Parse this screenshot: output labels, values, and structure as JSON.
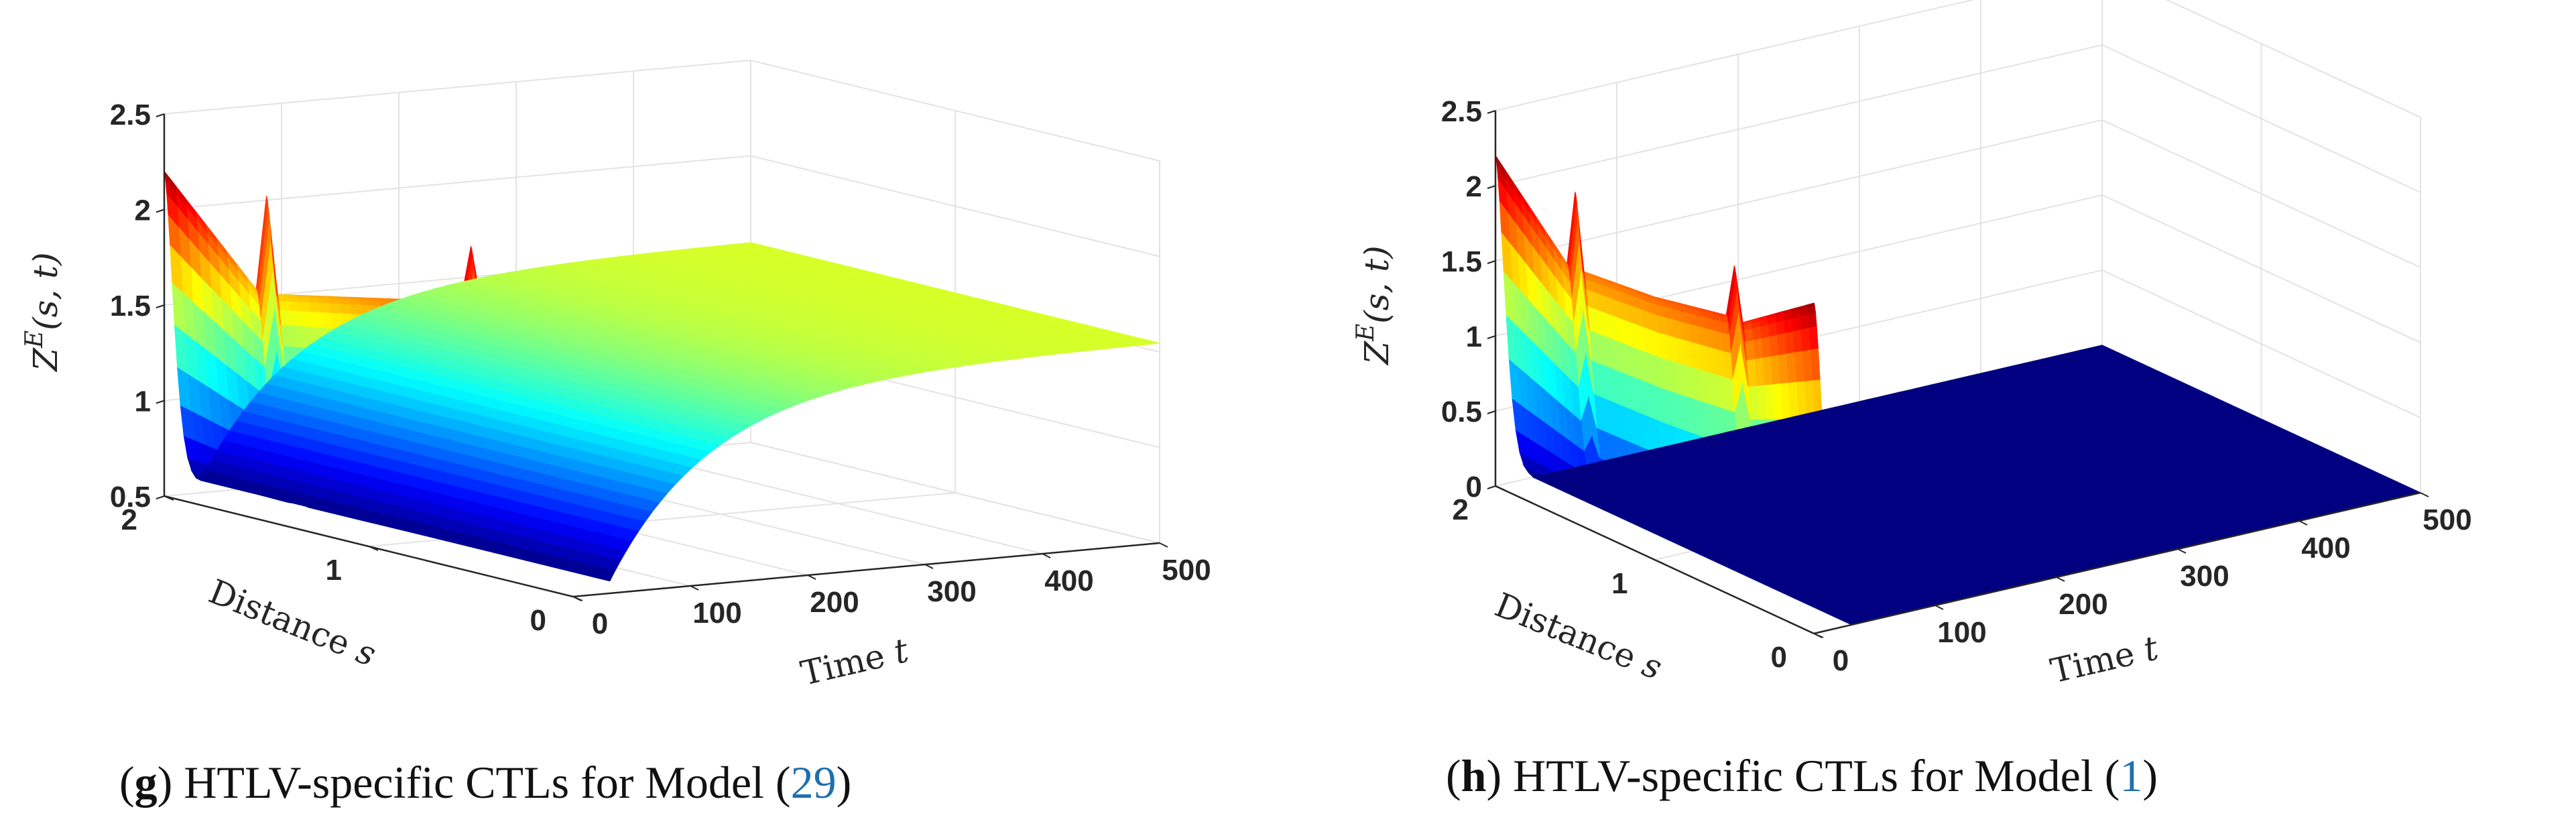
{
  "colors": {
    "grid": "#e3e3e3",
    "axis": "#262626",
    "link": "#1f6fb0"
  },
  "chart_data": [
    {
      "type": "surface",
      "panel_letter": "g",
      "caption_pre": "HTLV-specific CTLs for Model (",
      "caption_ref": "29",
      "caption_post": ")",
      "zlabel_main": "Z",
      "zlabel_sup": "E",
      "zlabel_args": "(s, t)",
      "xlabel_main": "Time ",
      "xlabel_var": "t",
      "ylabel_main": "Distance ",
      "ylabel_var": "s",
      "xlim": [
        0,
        500
      ],
      "ylim": [
        0,
        2
      ],
      "zlim": [
        0.5,
        2.5
      ],
      "xticks": [
        "0",
        "100",
        "200",
        "300",
        "400",
        "500"
      ],
      "yticks": [
        "0",
        "1",
        "2"
      ],
      "zticks": [
        "0.5",
        "1",
        "1.5",
        "2",
        "2.5"
      ],
      "colormap": "jet",
      "grid": true,
      "initial_profile": {
        "s": [
          0,
          0.45,
          0.5,
          0.55,
          1.0,
          1.45,
          1.5,
          1.55,
          2.0
        ],
        "Z": [
          2.2,
          1.9,
          2.2,
          1.9,
          1.8,
          1.7,
          2.2,
          1.7,
          2.2
        ]
      },
      "min_value": 0.55,
      "min_time": 30,
      "steady_state": 1.55
    },
    {
      "type": "surface",
      "panel_letter": "h",
      "caption_pre": "HTLV-specific CTLs for Model (",
      "caption_ref": "1",
      "caption_post": ")",
      "zlabel_main": "Z",
      "zlabel_sup": "E",
      "zlabel_args": "(s, t)",
      "xlabel_main": "Time ",
      "xlabel_var": "t",
      "ylabel_main": "Distance ",
      "ylabel_var": "s",
      "xlim": [
        0,
        500
      ],
      "ylim": [
        0,
        2
      ],
      "zlim": [
        0,
        2.5
      ],
      "xticks": [
        "0",
        "100",
        "200",
        "300",
        "400",
        "500"
      ],
      "yticks": [
        "0",
        "1",
        "2"
      ],
      "zticks": [
        "0",
        "0.5",
        "1",
        "1.5",
        "2",
        "2.5"
      ],
      "colormap": "jet",
      "grid": true,
      "initial_profile": {
        "s": [
          0,
          0.45,
          0.5,
          0.55,
          1.0,
          1.45,
          1.5,
          1.55,
          2.0
        ],
        "Z": [
          2.2,
          1.85,
          2.2,
          1.85,
          1.75,
          1.7,
          2.2,
          1.7,
          2.2
        ]
      },
      "min_value": 0.0,
      "min_time": 30,
      "steady_state": 0.0
    }
  ]
}
